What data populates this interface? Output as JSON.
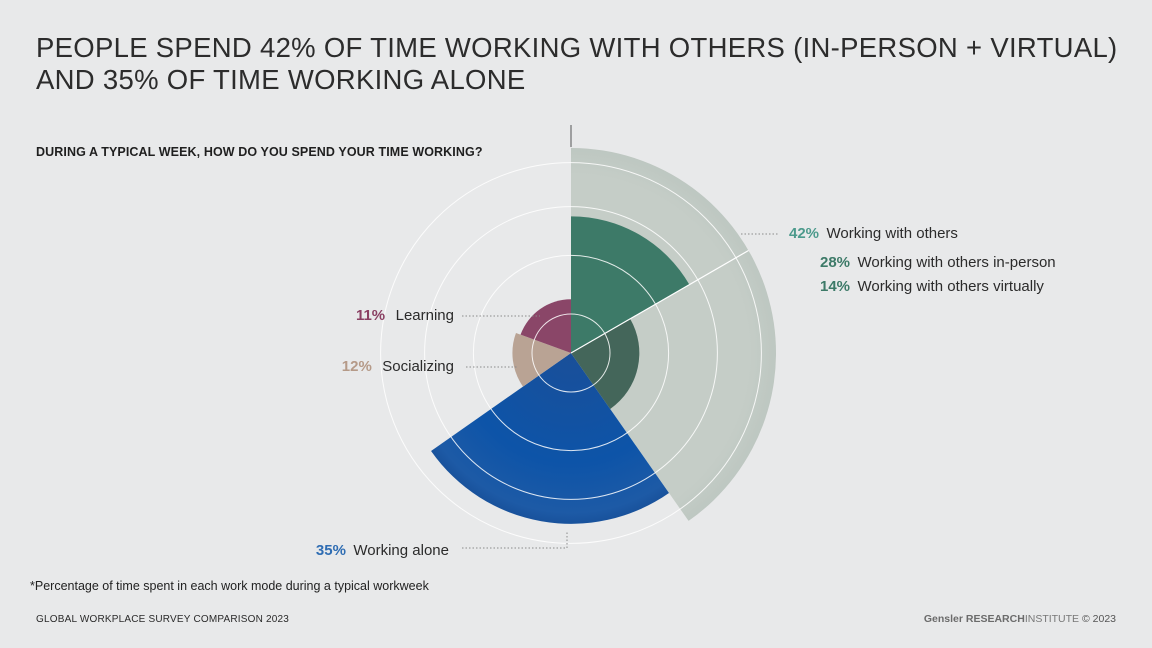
{
  "title_line1": "PEOPLE SPEND 42% OF TIME WORKING WITH OTHERS (IN-PERSON + VIRTUAL)",
  "title_line2": "AND 35% OF TIME WORKING ALONE",
  "footnote": "*Percentage of time spent in each work mode during a typical workweek",
  "footer_left": "GLOBAL WORKPLACE SURVEY COMPARISON 2023",
  "footer_right": {
    "brand": "Gensler",
    "research": "RESEARCH",
    "institute": "INSTITUTE",
    "copyright": "© 2023"
  },
  "chart_data": {
    "type": "pie",
    "subtitle": "DURING A TYPICAL WEEK, HOW DO YOU SPEND YOUR TIME WORKING?",
    "chart_style": "nightingale rose (polar area), radius proportional to share",
    "slices": [
      {
        "key": "others",
        "label": "Working with others",
        "pct_label": "42%",
        "value": 42,
        "color": "#c4ccc6",
        "label_color": "#4c9a8c",
        "sub_slices": [
          {
            "key": "inperson",
            "label": "Working with others in-person",
            "pct_label": "28%",
            "value": 28,
            "color": "#3d7a68",
            "label_color": "#3d7a68"
          },
          {
            "key": "virtual",
            "label": "Working with others virtually",
            "pct_label": "14%",
            "value": 14,
            "color": "#44665a",
            "label_color": "#3d7a68"
          }
        ]
      },
      {
        "key": "alone",
        "label": "Working alone",
        "pct_label": "35%",
        "value": 35,
        "color": "#0f4a96",
        "label_color": "#2f6db3"
      },
      {
        "key": "social",
        "label": "Socializing",
        "pct_label": "12%",
        "value": 12,
        "color": "#b9a394",
        "label_color": "#b59a88"
      },
      {
        "key": "learn",
        "label": "Learning",
        "pct_label": "11%",
        "value": 11,
        "color": "#8a4668",
        "label_color": "#8a3f62"
      }
    ],
    "colors": {
      "background": "#e8e9ea",
      "ring": "#ffffff",
      "leader": "#8a8a8a"
    }
  }
}
